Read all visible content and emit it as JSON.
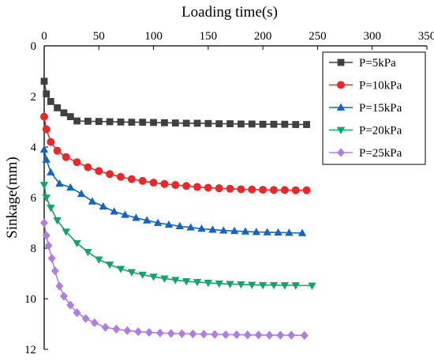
{
  "chart_data": {
    "type": "line",
    "xlabel": "Loading time(s)",
    "ylabel": "Sinkage(mm)",
    "xlim": [
      0,
      350
    ],
    "ylim": [
      0,
      12
    ],
    "x_axis_position": "top",
    "y_axis_inverted": true,
    "x_ticks": [
      "0",
      "50",
      "100",
      "150",
      "200",
      "250",
      "300",
      "350"
    ],
    "y_ticks": [
      "0",
      "2",
      "4",
      "6",
      "8",
      "10",
      "12"
    ],
    "grid": false,
    "legend_position": "top-right",
    "series": [
      {
        "name": "P=5kPa",
        "color": "#404040",
        "marker": "square",
        "points": [
          [
            0,
            1.4
          ],
          [
            2,
            1.9
          ],
          [
            6,
            2.2
          ],
          [
            12,
            2.45
          ],
          [
            18,
            2.65
          ],
          [
            24,
            2.8
          ],
          [
            30,
            2.97
          ],
          [
            40,
            2.98
          ],
          [
            50,
            2.99
          ],
          [
            60,
            3.0
          ],
          [
            70,
            3.01
          ],
          [
            80,
            3.02
          ],
          [
            90,
            3.02
          ],
          [
            100,
            3.03
          ],
          [
            110,
            3.04
          ],
          [
            120,
            3.05
          ],
          [
            130,
            3.06
          ],
          [
            140,
            3.06
          ],
          [
            150,
            3.07
          ],
          [
            160,
            3.08
          ],
          [
            170,
            3.08
          ],
          [
            180,
            3.09
          ],
          [
            190,
            3.09
          ],
          [
            200,
            3.1
          ],
          [
            210,
            3.1
          ],
          [
            220,
            3.1
          ],
          [
            230,
            3.11
          ],
          [
            240,
            3.11
          ]
        ]
      },
      {
        "name": "P=10kPa",
        "color": "#e8292b",
        "marker": "circle",
        "points": [
          [
            0,
            2.8
          ],
          [
            2,
            3.3
          ],
          [
            6,
            3.8
          ],
          [
            12,
            4.15
          ],
          [
            20,
            4.4
          ],
          [
            30,
            4.6
          ],
          [
            40,
            4.8
          ],
          [
            50,
            4.95
          ],
          [
            60,
            5.07
          ],
          [
            70,
            5.18
          ],
          [
            80,
            5.27
          ],
          [
            90,
            5.34
          ],
          [
            100,
            5.41
          ],
          [
            110,
            5.46
          ],
          [
            120,
            5.5
          ],
          [
            130,
            5.54
          ],
          [
            140,
            5.58
          ],
          [
            150,
            5.61
          ],
          [
            160,
            5.63
          ],
          [
            170,
            5.65
          ],
          [
            180,
            5.67
          ],
          [
            190,
            5.68
          ],
          [
            200,
            5.69
          ],
          [
            210,
            5.7
          ],
          [
            220,
            5.7
          ],
          [
            230,
            5.71
          ],
          [
            240,
            5.71
          ]
        ]
      },
      {
        "name": "P=15kPa",
        "color": "#1565c0",
        "marker": "triangle-up",
        "points": [
          [
            0,
            4.1
          ],
          [
            2,
            4.5
          ],
          [
            6,
            5.0
          ],
          [
            14,
            5.45
          ],
          [
            24,
            5.6
          ],
          [
            34,
            5.85
          ],
          [
            44,
            6.15
          ],
          [
            54,
            6.35
          ],
          [
            64,
            6.55
          ],
          [
            74,
            6.68
          ],
          [
            84,
            6.8
          ],
          [
            94,
            6.9
          ],
          [
            104,
            7.0
          ],
          [
            114,
            7.07
          ],
          [
            124,
            7.13
          ],
          [
            134,
            7.18
          ],
          [
            144,
            7.23
          ],
          [
            154,
            7.27
          ],
          [
            164,
            7.3
          ],
          [
            174,
            7.32
          ],
          [
            184,
            7.34
          ],
          [
            194,
            7.36
          ],
          [
            204,
            7.37
          ],
          [
            214,
            7.38
          ],
          [
            224,
            7.39
          ],
          [
            236,
            7.4
          ]
        ]
      },
      {
        "name": "P=20kPa",
        "color": "#13a36b",
        "marker": "triangle-down",
        "points": [
          [
            0,
            5.5
          ],
          [
            2,
            6.0
          ],
          [
            6,
            6.4
          ],
          [
            12,
            6.9
          ],
          [
            20,
            7.35
          ],
          [
            30,
            7.8
          ],
          [
            40,
            8.15
          ],
          [
            50,
            8.45
          ],
          [
            60,
            8.65
          ],
          [
            70,
            8.82
          ],
          [
            80,
            8.95
          ],
          [
            90,
            9.05
          ],
          [
            100,
            9.13
          ],
          [
            110,
            9.2
          ],
          [
            120,
            9.26
          ],
          [
            130,
            9.31
          ],
          [
            140,
            9.34
          ],
          [
            150,
            9.37
          ],
          [
            160,
            9.4
          ],
          [
            170,
            9.42
          ],
          [
            180,
            9.43
          ],
          [
            190,
            9.45
          ],
          [
            200,
            9.46
          ],
          [
            210,
            9.46
          ],
          [
            220,
            9.47
          ],
          [
            230,
            9.47
          ],
          [
            245,
            9.48
          ]
        ]
      },
      {
        "name": "P=25kPa",
        "color": "#b07ee0",
        "marker": "diamond",
        "points": [
          [
            0,
            7.0
          ],
          [
            2,
            7.5
          ],
          [
            4,
            7.9
          ],
          [
            7,
            8.4
          ],
          [
            10,
            8.9
          ],
          [
            14,
            9.5
          ],
          [
            18,
            9.9
          ],
          [
            24,
            10.25
          ],
          [
            30,
            10.55
          ],
          [
            38,
            10.78
          ],
          [
            46,
            10.95
          ],
          [
            56,
            11.13
          ],
          [
            66,
            11.2
          ],
          [
            76,
            11.26
          ],
          [
            86,
            11.3
          ],
          [
            96,
            11.33
          ],
          [
            106,
            11.35
          ],
          [
            116,
            11.37
          ],
          [
            126,
            11.38
          ],
          [
            136,
            11.39
          ],
          [
            146,
            11.4
          ],
          [
            156,
            11.41
          ],
          [
            166,
            11.42
          ],
          [
            176,
            11.42
          ],
          [
            186,
            11.43
          ],
          [
            196,
            11.43
          ],
          [
            206,
            11.44
          ],
          [
            216,
            11.44
          ],
          [
            226,
            11.44
          ],
          [
            238,
            11.45
          ]
        ]
      }
    ]
  }
}
